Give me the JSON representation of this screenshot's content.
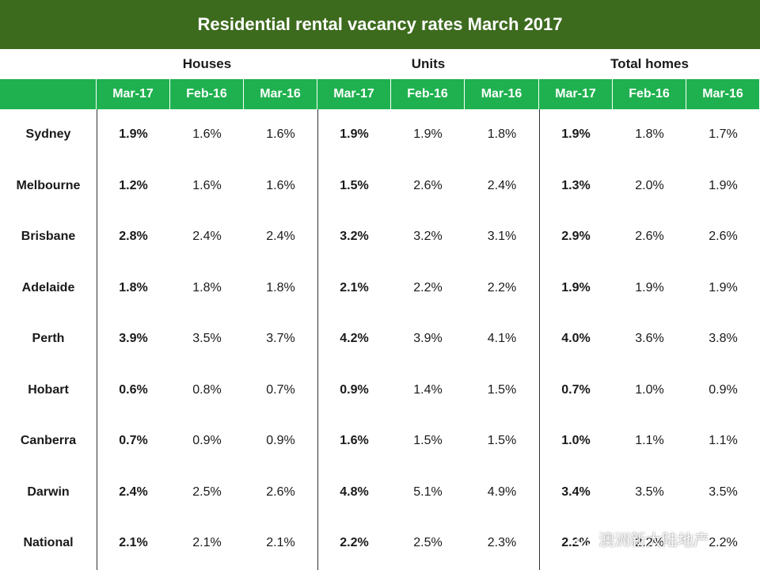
{
  "title": "Residential rental vacancy rates March 2017",
  "groups": [
    "Houses",
    "Units",
    "Total homes"
  ],
  "periods": [
    "Mar-17",
    "Feb-16",
    "Mar-16"
  ],
  "colors": {
    "title_bg": "#3d6b1e",
    "header_bg": "#1fb14f"
  },
  "rows": [
    {
      "city": "Sydney",
      "values": [
        "1.9%",
        "1.6%",
        "1.6%",
        "1.9%",
        "1.9%",
        "1.8%",
        "1.9%",
        "1.8%",
        "1.7%"
      ]
    },
    {
      "city": "Melbourne",
      "values": [
        "1.2%",
        "1.6%",
        "1.6%",
        "1.5%",
        "2.6%",
        "2.4%",
        "1.3%",
        "2.0%",
        "1.9%"
      ]
    },
    {
      "city": "Brisbane",
      "values": [
        "2.8%",
        "2.4%",
        "2.4%",
        "3.2%",
        "3.2%",
        "3.1%",
        "2.9%",
        "2.6%",
        "2.6%"
      ]
    },
    {
      "city": "Adelaide",
      "values": [
        "1.8%",
        "1.8%",
        "1.8%",
        "2.1%",
        "2.2%",
        "2.2%",
        "1.9%",
        "1.9%",
        "1.9%"
      ]
    },
    {
      "city": "Perth",
      "values": [
        "3.9%",
        "3.5%",
        "3.7%",
        "4.2%",
        "3.9%",
        "4.1%",
        "4.0%",
        "3.6%",
        "3.8%"
      ]
    },
    {
      "city": "Hobart",
      "values": [
        "0.6%",
        "0.8%",
        "0.7%",
        "0.9%",
        "1.4%",
        "1.5%",
        "0.7%",
        "1.0%",
        "0.9%"
      ]
    },
    {
      "city": "Canberra",
      "values": [
        "0.7%",
        "0.9%",
        "0.9%",
        "1.6%",
        "1.5%",
        "1.5%",
        "1.0%",
        "1.1%",
        "1.1%"
      ]
    },
    {
      "city": "Darwin",
      "values": [
        "2.4%",
        "2.5%",
        "2.6%",
        "4.8%",
        "5.1%",
        "4.9%",
        "3.4%",
        "3.5%",
        "3.5%"
      ]
    },
    {
      "city": "National",
      "values": [
        "2.1%",
        "2.1%",
        "2.1%",
        "2.2%",
        "2.5%",
        "2.3%",
        "2.2%",
        "2.2%",
        "2.2%"
      ]
    }
  ],
  "watermark": {
    "icon": "wechat-icon",
    "text": "澳洲新大陆地产"
  },
  "chart_data": {
    "type": "table",
    "title": "Residential rental vacancy rates March 2017",
    "column_groups": [
      {
        "name": "Houses",
        "columns": [
          "Mar-17",
          "Feb-16",
          "Mar-16"
        ]
      },
      {
        "name": "Units",
        "columns": [
          "Mar-17",
          "Feb-16",
          "Mar-16"
        ]
      },
      {
        "name": "Total homes",
        "columns": [
          "Mar-17",
          "Feb-16",
          "Mar-16"
        ]
      }
    ],
    "row_labels": [
      "Sydney",
      "Melbourne",
      "Brisbane",
      "Adelaide",
      "Perth",
      "Hobart",
      "Canberra",
      "Darwin",
      "National"
    ],
    "values": [
      [
        1.9,
        1.6,
        1.6,
        1.9,
        1.9,
        1.8,
        1.9,
        1.8,
        1.7
      ],
      [
        1.2,
        1.6,
        1.6,
        1.5,
        2.6,
        2.4,
        1.3,
        2.0,
        1.9
      ],
      [
        2.8,
        2.4,
        2.4,
        3.2,
        3.2,
        3.1,
        2.9,
        2.6,
        2.6
      ],
      [
        1.8,
        1.8,
        1.8,
        2.1,
        2.2,
        2.2,
        1.9,
        1.9,
        1.9
      ],
      [
        3.9,
        3.5,
        3.7,
        4.2,
        3.9,
        4.1,
        4.0,
        3.6,
        3.8
      ],
      [
        0.6,
        0.8,
        0.7,
        0.9,
        1.4,
        1.5,
        0.7,
        1.0,
        0.9
      ],
      [
        0.7,
        0.9,
        0.9,
        1.6,
        1.5,
        1.5,
        1.0,
        1.1,
        1.1
      ],
      [
        2.4,
        2.5,
        2.6,
        4.8,
        5.1,
        4.9,
        3.4,
        3.5,
        3.5
      ],
      [
        2.1,
        2.1,
        2.1,
        2.2,
        2.5,
        2.3,
        2.2,
        2.2,
        2.2
      ]
    ],
    "unit": "%"
  }
}
